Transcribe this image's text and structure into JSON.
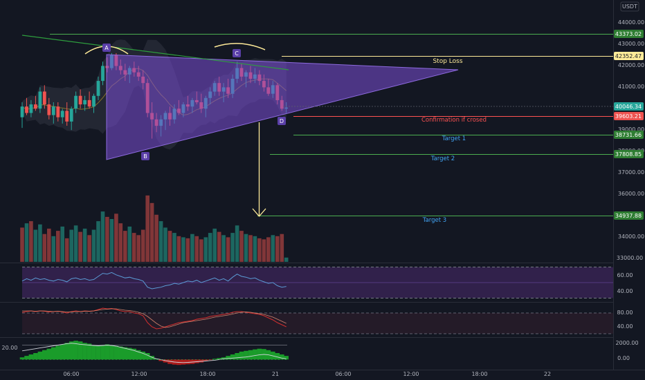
{
  "header": {
    "currency": "USDT"
  },
  "colors": {
    "background": "#131722",
    "up": "#26a69a",
    "down": "#ef5350",
    "wedge": "#7b4fd6",
    "green_line": "#4caf50",
    "stop_line": "#ffeb99",
    "confirm_line": "#ff5252",
    "target_text": "#42a5f5",
    "rsi_band": "#4a2a6e"
  },
  "chart_data": [
    {
      "type": "candlestick",
      "name": "main",
      "price_axis": {
        "ticks": [
          "44000.00",
          "43000.00",
          "42000.00",
          "41000.00",
          "40000.00",
          "39000.00",
          "38000.00",
          "37000.00",
          "36000.00",
          "35000.00",
          "34000.00",
          "33000.00"
        ],
        "range": [
          32800,
          44600
        ]
      },
      "time_axis": {
        "ticks": [
          "06:00",
          "12:00",
          "18:00",
          "21",
          "06:00",
          "12:00",
          "18:00",
          "22"
        ]
      },
      "price_labels": {
        "level_43373": "43373.02",
        "stop": "42352.47",
        "current": "40046.34",
        "confirm": "39603.21",
        "target1": "38731.66",
        "target2": "37808.85",
        "target3": "34937.88",
        "bottom": "33000.00"
      },
      "annotations": {
        "stop_loss": "Stop Loss",
        "confirmation": "Confirmation if crosed",
        "target1": "Target 1",
        "target2": "Target 2",
        "target3": "Target 3",
        "point_a": "A",
        "point_b": "B",
        "point_c": "C",
        "point_d": "D"
      },
      "candles": [
        [
          39600,
          40300,
          39100,
          40100
        ],
        [
          40100,
          40500,
          39700,
          39800
        ],
        [
          39800,
          40400,
          39600,
          40200
        ],
        [
          40200,
          40600,
          39900,
          40000
        ],
        [
          40000,
          41000,
          39800,
          40800
        ],
        [
          40800,
          41100,
          40000,
          40200
        ],
        [
          40200,
          40500,
          39500,
          39700
        ],
        [
          39700,
          40300,
          39300,
          40100
        ],
        [
          40100,
          40300,
          39400,
          39600
        ],
        [
          39600,
          40000,
          39300,
          39900
        ],
        [
          39900,
          40300,
          39200,
          39400
        ],
        [
          39400,
          40100,
          39000,
          40000
        ],
        [
          40000,
          40800,
          39800,
          40600
        ],
        [
          40600,
          40900,
          40000,
          40200
        ],
        [
          40200,
          40600,
          39900,
          40400
        ],
        [
          40400,
          40800,
          40000,
          40100
        ],
        [
          40100,
          40700,
          39800,
          40600
        ],
        [
          40600,
          41500,
          40400,
          41300
        ],
        [
          41300,
          42200,
          41100,
          42000
        ],
        [
          42000,
          42400,
          41700,
          41900
        ],
        [
          41900,
          42600,
          41800,
          42500
        ],
        [
          42500,
          42600,
          41800,
          42000
        ],
        [
          42000,
          42300,
          41600,
          41800
        ],
        [
          41800,
          42100,
          41300,
          41600
        ],
        [
          41600,
          42000,
          41200,
          41900
        ],
        [
          41900,
          42200,
          41500,
          41700
        ],
        [
          41700,
          42000,
          41300,
          41500
        ],
        [
          41500,
          41800,
          40900,
          41200
        ],
        [
          41200,
          41400,
          39600,
          39800
        ],
        [
          39800,
          40300,
          38600,
          39500
        ],
        [
          39500,
          39800,
          38900,
          39200
        ],
        [
          39200,
          39700,
          38700,
          39500
        ],
        [
          39500,
          39900,
          39000,
          39800
        ],
        [
          39800,
          40100,
          39200,
          39500
        ],
        [
          39500,
          40200,
          39300,
          40000
        ],
        [
          40000,
          40400,
          39700,
          39800
        ],
        [
          39800,
          40300,
          39600,
          40200
        ],
        [
          40200,
          40600,
          39900,
          40100
        ],
        [
          40100,
          40500,
          39800,
          40400
        ],
        [
          40400,
          40800,
          40200,
          40300
        ],
        [
          40300,
          40700,
          39800,
          40000
        ],
        [
          40000,
          40600,
          39600,
          40500
        ],
        [
          40500,
          41000,
          40200,
          40800
        ],
        [
          40800,
          41300,
          40600,
          41200
        ],
        [
          41200,
          41500,
          40600,
          40800
        ],
        [
          40800,
          41200,
          40300,
          41000
        ],
        [
          41000,
          41400,
          40500,
          40700
        ],
        [
          40700,
          41600,
          40500,
          41400
        ],
        [
          41400,
          42200,
          41200,
          41900
        ],
        [
          41900,
          42100,
          41300,
          41500
        ],
        [
          41500,
          41800,
          41000,
          41700
        ],
        [
          41700,
          42000,
          41200,
          41400
        ],
        [
          41400,
          41900,
          41200,
          41600
        ],
        [
          41600,
          41800,
          41100,
          41300
        ],
        [
          41300,
          41600,
          40800,
          41000
        ],
        [
          41000,
          41400,
          40600,
          40700
        ],
        [
          40700,
          41300,
          40500,
          41100
        ],
        [
          41100,
          41200,
          40200,
          40400
        ],
        [
          40400,
          40600,
          39900,
          40000
        ],
        [
          40000,
          40300,
          39800,
          40050
        ]
      ],
      "volumes": [
        32,
        36,
        38,
        30,
        35,
        26,
        31,
        24,
        29,
        33,
        22,
        30,
        34,
        28,
        31,
        25,
        30,
        38,
        47,
        42,
        40,
        45,
        36,
        29,
        33,
        27,
        25,
        30,
        62,
        55,
        44,
        38,
        32,
        29,
        27,
        24,
        23,
        22,
        26,
        24,
        21,
        23,
        27,
        31,
        28,
        25,
        23,
        27,
        34,
        29,
        26,
        25,
        24,
        22,
        21,
        23,
        25,
        24,
        26,
        4
      ],
      "volume_up": [
        false,
        true,
        false,
        true,
        true,
        false,
        false,
        true,
        false,
        true,
        false,
        true,
        true,
        false,
        true,
        false,
        true,
        true,
        true,
        false,
        true,
        false,
        false,
        false,
        true,
        false,
        false,
        false,
        false,
        false,
        false,
        true,
        true,
        false,
        true,
        false,
        true,
        false,
        true,
        false,
        false,
        true,
        true,
        true,
        false,
        true,
        false,
        true,
        true,
        false,
        true,
        false,
        true,
        false,
        false,
        false,
        true,
        false,
        false,
        true
      ]
    },
    {
      "type": "line",
      "name": "rsi",
      "ticks": [
        "60.00",
        "40.00"
      ],
      "range": [
        25,
        75
      ],
      "values": [
        52,
        55,
        53,
        56,
        54,
        55,
        53,
        52,
        54,
        53,
        51,
        55,
        56,
        54,
        55,
        53,
        54,
        58,
        62,
        61,
        63,
        60,
        58,
        56,
        57,
        55,
        54,
        52,
        44,
        42,
        43,
        44,
        46,
        47,
        49,
        48,
        50,
        52,
        51,
        53,
        50,
        52,
        54,
        56,
        53,
        55,
        52,
        57,
        61,
        58,
        57,
        55,
        56,
        53,
        51,
        49,
        50,
        46,
        44,
        45
      ]
    },
    {
      "type": "line",
      "name": "stochastic",
      "ticks": [
        "80.00",
        "40.00"
      ],
      "range": [
        10,
        110
      ],
      "k": [
        82,
        84,
        86,
        84,
        86,
        85,
        83,
        84,
        85,
        83,
        80,
        84,
        86,
        84,
        86,
        85,
        86,
        90,
        94,
        92,
        93,
        90,
        86,
        84,
        84,
        80,
        78,
        72,
        52,
        40,
        34,
        36,
        40,
        44,
        48,
        52,
        54,
        56,
        58,
        62,
        64,
        66,
        70,
        72,
        74,
        76,
        78,
        82,
        84,
        84,
        82,
        80,
        78,
        76,
        72,
        66,
        60,
        52,
        46,
        40
      ],
      "d": [
        86,
        86,
        86,
        85,
        86,
        86,
        85,
        84,
        85,
        84,
        83,
        83,
        84,
        84,
        85,
        85,
        86,
        88,
        90,
        91,
        92,
        92,
        90,
        88,
        87,
        85,
        82,
        78,
        70,
        60,
        50,
        42,
        38,
        40,
        44,
        48,
        52,
        54,
        56,
        58,
        60,
        62,
        65,
        68,
        70,
        72,
        74,
        77,
        80,
        82,
        83,
        82,
        80,
        78,
        76,
        72,
        68,
        62,
        56,
        50
      ]
    },
    {
      "type": "histogram",
      "name": "macd",
      "left_value": "20.00",
      "ticks": [
        "2000.00",
        "0.00"
      ],
      "range": [
        -1400,
        3000
      ],
      "histogram": [
        300,
        500,
        700,
        900,
        1100,
        1300,
        1500,
        1700,
        1900,
        2100,
        2300,
        2500,
        2600,
        2500,
        2300,
        2200,
        2000,
        1900,
        2000,
        2100,
        2000,
        1900,
        1800,
        1700,
        1600,
        1500,
        1300,
        1100,
        900,
        500,
        100,
        -200,
        -400,
        -600,
        -700,
        -750,
        -700,
        -650,
        -600,
        -500,
        -400,
        -200,
        -50,
        100,
        200,
        300,
        500,
        700,
        900,
        1100,
        1200,
        1300,
        1400,
        1500,
        1450,
        1300,
        1100,
        900,
        700,
        500
      ],
      "line": [
        1200,
        1300,
        1400,
        1500,
        1600,
        1700,
        1800,
        1900,
        2000,
        2100,
        2200,
        2250,
        2200,
        2100,
        2050,
        2000,
        1950,
        1900,
        1950,
        2000,
        1950,
        1850,
        1700,
        1550,
        1400,
        1250,
        1050,
        850,
        600,
        300,
        100,
        0,
        -150,
        -250,
        -350,
        -400,
        -420,
        -400,
        -350,
        -300,
        -250,
        -200,
        -150,
        -100,
        0,
        100,
        150,
        200,
        250,
        300,
        350,
        450,
        550,
        650,
        700,
        650,
        500,
        350,
        200,
        100
      ]
    }
  ]
}
